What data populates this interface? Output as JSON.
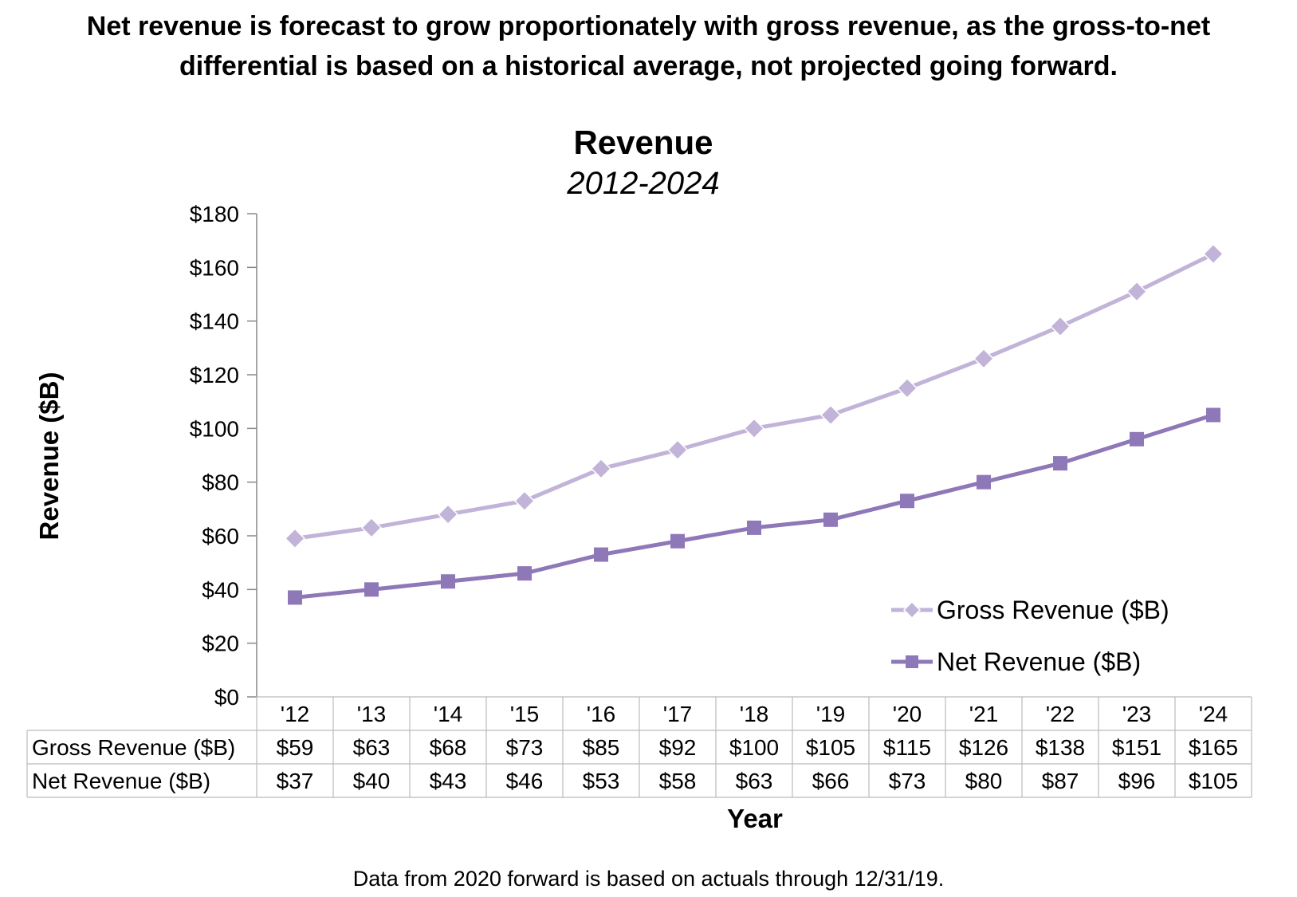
{
  "headline": {
    "line1": "Net revenue is forecast to grow proportionately with gross revenue, as the gross-to-net",
    "line2": "differential is based on a historical average, not projected going forward."
  },
  "footnote": "Data from 2020 forward is based on actuals through 12/31/19.",
  "colors": {
    "gross": "#c2b3d8",
    "net": "#8e78b8",
    "axis": "#888888",
    "grid": "#bbbbbb"
  },
  "chart_data": {
    "type": "line",
    "title": "Revenue",
    "subtitle": "2012-2024",
    "xlabel": "Year",
    "ylabel": "Revenue ($B)",
    "categories": [
      "'12",
      "'13",
      "'14",
      "'15",
      "'16",
      "'17",
      "'18",
      "'19",
      "'20",
      "'21",
      "'22",
      "'23",
      "'24"
    ],
    "ylim": [
      0,
      180
    ],
    "yticks": [
      0,
      20,
      40,
      60,
      80,
      100,
      120,
      140,
      160,
      180
    ],
    "ytick_labels": [
      "$0",
      "$20",
      "$40",
      "$60",
      "$80",
      "$100",
      "$120",
      "$140",
      "$160",
      "$180"
    ],
    "legend_position": "bottom-right",
    "series": [
      {
        "name": "Gross Revenue ($B)",
        "marker": "diamond",
        "values": [
          59,
          63,
          68,
          73,
          85,
          92,
          100,
          105,
          115,
          126,
          138,
          151,
          165
        ],
        "labels": [
          "$59",
          "$63",
          "$68",
          "$73",
          "$85",
          "$92",
          "$100",
          "$105",
          "$115",
          "$126",
          "$138",
          "$151",
          "$165"
        ]
      },
      {
        "name": "Net Revenue ($B)",
        "marker": "square",
        "values": [
          37,
          40,
          43,
          46,
          53,
          58,
          63,
          66,
          73,
          80,
          87,
          96,
          105
        ],
        "labels": [
          "$37",
          "$40",
          "$43",
          "$46",
          "$53",
          "$58",
          "$63",
          "$66",
          "$73",
          "$80",
          "$87",
          "$96",
          "$105"
        ]
      }
    ]
  }
}
